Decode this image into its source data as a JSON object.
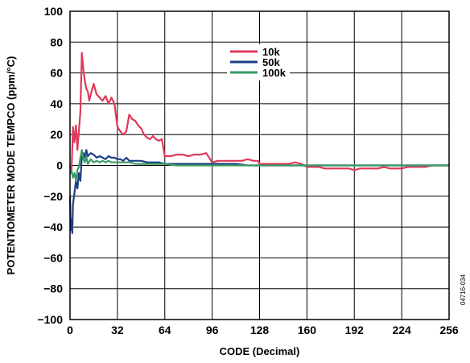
{
  "chart_data": {
    "type": "line",
    "xlabel": "CODE (Decimal)",
    "ylabel": "POTENTIOMETER MODE TEMPCO (ppm/°C)",
    "xlim": [
      0,
      256
    ],
    "ylim": [
      -100,
      100
    ],
    "x_ticks": [
      "0",
      "32",
      "64",
      "96",
      "128",
      "160",
      "192",
      "224",
      "256"
    ],
    "y_ticks": [
      "100",
      "80",
      "60",
      "40",
      "20",
      "0",
      "−20",
      "−40",
      "−60",
      "−80",
      "−100"
    ],
    "grid": true,
    "legend_position": "top-center",
    "figure_id": "04716-034",
    "series": [
      {
        "name": "10k",
        "color": "#e0395a",
        "points": [
          [
            0,
            0
          ],
          [
            1,
            -5
          ],
          [
            2,
            25
          ],
          [
            3,
            15
          ],
          [
            4,
            26
          ],
          [
            5,
            10
          ],
          [
            6,
            22
          ],
          [
            7,
            35
          ],
          [
            8,
            73
          ],
          [
            9,
            62
          ],
          [
            10,
            55
          ],
          [
            11,
            50
          ],
          [
            12,
            48
          ],
          [
            13,
            42
          ],
          [
            14,
            46
          ],
          [
            16,
            53
          ],
          [
            18,
            46
          ],
          [
            20,
            44
          ],
          [
            22,
            42
          ],
          [
            24,
            45
          ],
          [
            26,
            40
          ],
          [
            28,
            44
          ],
          [
            30,
            40
          ],
          [
            32,
            25
          ],
          [
            34,
            22
          ],
          [
            36,
            20
          ],
          [
            38,
            22
          ],
          [
            40,
            33
          ],
          [
            42,
            30
          ],
          [
            44,
            29
          ],
          [
            46,
            26
          ],
          [
            48,
            24
          ],
          [
            50,
            20
          ],
          [
            52,
            18
          ],
          [
            54,
            17
          ],
          [
            56,
            19
          ],
          [
            58,
            17
          ],
          [
            60,
            16
          ],
          [
            62,
            17
          ],
          [
            64,
            6
          ],
          [
            68,
            6
          ],
          [
            72,
            7
          ],
          [
            76,
            7
          ],
          [
            80,
            6
          ],
          [
            84,
            7
          ],
          [
            88,
            7
          ],
          [
            92,
            8
          ],
          [
            96,
            2
          ],
          [
            100,
            3
          ],
          [
            104,
            3
          ],
          [
            108,
            3
          ],
          [
            112,
            3
          ],
          [
            116,
            3
          ],
          [
            120,
            4
          ],
          [
            124,
            3
          ],
          [
            127,
            3
          ],
          [
            128,
            1
          ],
          [
            132,
            1
          ],
          [
            136,
            1
          ],
          [
            140,
            1
          ],
          [
            144,
            1
          ],
          [
            148,
            1
          ],
          [
            152,
            2
          ],
          [
            156,
            1
          ],
          [
            160,
            -1
          ],
          [
            164,
            -1
          ],
          [
            168,
            -1
          ],
          [
            172,
            -2
          ],
          [
            176,
            -2
          ],
          [
            180,
            -2
          ],
          [
            184,
            -2
          ],
          [
            188,
            -2
          ],
          [
            192,
            -3
          ],
          [
            196,
            -2
          ],
          [
            200,
            -2
          ],
          [
            204,
            -2
          ],
          [
            208,
            -2
          ],
          [
            212,
            -1
          ],
          [
            216,
            -2
          ],
          [
            220,
            -2
          ],
          [
            224,
            -2
          ],
          [
            228,
            -1
          ],
          [
            232,
            -1
          ],
          [
            236,
            -1
          ],
          [
            240,
            -1
          ],
          [
            244,
            0
          ],
          [
            248,
            0
          ],
          [
            252,
            0
          ],
          [
            256,
            0
          ]
        ]
      },
      {
        "name": "50k",
        "color": "#1c3f86",
        "points": [
          [
            0,
            -20
          ],
          [
            0.5,
            -42
          ],
          [
            1,
            -35
          ],
          [
            1.5,
            -44
          ],
          [
            2,
            -25
          ],
          [
            3,
            -18
          ],
          [
            4,
            -10
          ],
          [
            5,
            -15
          ],
          [
            6,
            -5
          ],
          [
            7,
            -10
          ],
          [
            8,
            6
          ],
          [
            9,
            8
          ],
          [
            10,
            5
          ],
          [
            11,
            10
          ],
          [
            12,
            6
          ],
          [
            14,
            8
          ],
          [
            16,
            7
          ],
          [
            18,
            5
          ],
          [
            20,
            6
          ],
          [
            22,
            5
          ],
          [
            24,
            4
          ],
          [
            26,
            6
          ],
          [
            28,
            5
          ],
          [
            30,
            5
          ],
          [
            32,
            4
          ],
          [
            34,
            4
          ],
          [
            36,
            3
          ],
          [
            38,
            5
          ],
          [
            40,
            3
          ],
          [
            44,
            3
          ],
          [
            48,
            3
          ],
          [
            52,
            2
          ],
          [
            56,
            2
          ],
          [
            60,
            2
          ],
          [
            64,
            1
          ],
          [
            72,
            1
          ],
          [
            80,
            1
          ],
          [
            88,
            1
          ],
          [
            96,
            1
          ],
          [
            104,
            1
          ],
          [
            112,
            1
          ],
          [
            120,
            0
          ],
          [
            128,
            0
          ],
          [
            144,
            0
          ],
          [
            160,
            0
          ],
          [
            176,
            0
          ],
          [
            192,
            0
          ],
          [
            208,
            0
          ],
          [
            224,
            0
          ],
          [
            240,
            0
          ],
          [
            256,
            0
          ]
        ]
      },
      {
        "name": "100k",
        "color": "#3b9a63",
        "points": [
          [
            0,
            -5
          ],
          [
            1,
            -3
          ],
          [
            2,
            -8
          ],
          [
            3,
            -5
          ],
          [
            4,
            -10
          ],
          [
            5,
            -3
          ],
          [
            6,
            -1
          ],
          [
            7,
            5
          ],
          [
            8,
            10
          ],
          [
            9,
            4
          ],
          [
            10,
            2
          ],
          [
            11,
            6
          ],
          [
            12,
            1
          ],
          [
            14,
            4
          ],
          [
            16,
            2
          ],
          [
            18,
            3
          ],
          [
            20,
            2
          ],
          [
            22,
            3
          ],
          [
            24,
            2
          ],
          [
            26,
            3
          ],
          [
            28,
            2
          ],
          [
            30,
            2
          ],
          [
            32,
            2
          ],
          [
            36,
            2
          ],
          [
            40,
            2
          ],
          [
            44,
            1
          ],
          [
            48,
            1
          ],
          [
            52,
            1
          ],
          [
            56,
            1
          ],
          [
            60,
            1
          ],
          [
            64,
            1
          ],
          [
            72,
            0
          ],
          [
            80,
            0
          ],
          [
            88,
            0
          ],
          [
            96,
            0
          ],
          [
            104,
            0
          ],
          [
            112,
            0
          ],
          [
            120,
            0
          ],
          [
            128,
            0
          ],
          [
            144,
            0
          ],
          [
            160,
            0
          ],
          [
            176,
            0
          ],
          [
            192,
            0
          ],
          [
            208,
            0
          ],
          [
            224,
            0
          ],
          [
            240,
            0
          ],
          [
            256,
            0
          ]
        ]
      }
    ]
  }
}
